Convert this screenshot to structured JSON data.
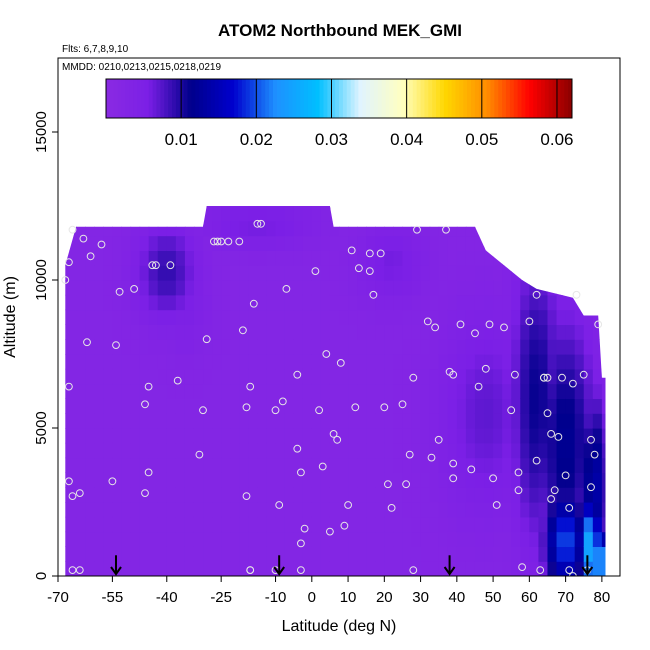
{
  "chart_data": {
    "type": "heatmap",
    "title": "ATOM2 Northbound MEK_GMI",
    "subtitle_flights": "Flts: 6,7,8,9,10",
    "subtitle_dates": "MMDD: 0210,0213,0215,0218,0219",
    "xlabel": "Latitude (deg N)",
    "ylabel": "Altitude (m)",
    "xlim": [
      -70,
      85
    ],
    "ylim": [
      0,
      17500
    ],
    "x_ticks": [
      "-70",
      "-55",
      "-40",
      "-25",
      "-10",
      "0",
      "10",
      "20",
      "30",
      "40",
      "50",
      "60",
      "70",
      "80"
    ],
    "x_tick_values": [
      -70,
      -55,
      -40,
      -25,
      -10,
      0,
      10,
      20,
      30,
      40,
      50,
      60,
      70,
      80
    ],
    "y_ticks": [
      "0",
      "5000",
      "10000",
      "15000"
    ],
    "y_tick_values": [
      0,
      5000,
      10000,
      15000
    ],
    "colorbar": {
      "range": [
        0,
        0.062
      ],
      "tick_labels": [
        "0.01",
        "0.02",
        "0.03",
        "0.04",
        "0.05",
        "0.06"
      ],
      "tick_values": [
        0.01,
        0.02,
        0.03,
        0.04,
        0.05,
        0.06
      ],
      "colors": [
        "#8a2be2",
        "#7b1fe6",
        "#00008b",
        "#0000cd",
        "#1e90ff",
        "#00bfff",
        "#e0f4ff",
        "#ffffc0",
        "#ffd700",
        "#ff8c00",
        "#ff0000",
        "#8b0000"
      ]
    },
    "background_value": 0.0025,
    "profile_tops": [
      {
        "lat": -68,
        "alt": 10500
      },
      {
        "lat": -65,
        "alt": 11800
      },
      {
        "lat": -30,
        "alt": 11800
      },
      {
        "lat": -29,
        "alt": 12500
      },
      {
        "lat": 5,
        "alt": 12500
      },
      {
        "lat": 6,
        "alt": 11800
      },
      {
        "lat": 45,
        "alt": 11800
      },
      {
        "lat": 48,
        "alt": 11000
      },
      {
        "lat": 53,
        "alt": 10500
      },
      {
        "lat": 58,
        "alt": 10000
      },
      {
        "lat": 62,
        "alt": 9700
      },
      {
        "lat": 72,
        "alt": 9400
      },
      {
        "lat": 75,
        "alt": 8800
      },
      {
        "lat": 79,
        "alt": 8800
      },
      {
        "lat": 80,
        "alt": 6700
      },
      {
        "lat": 81,
        "alt": 6700
      },
      {
        "lat": 81,
        "alt": 0
      },
      {
        "lat": -68,
        "alt": 0
      }
    ],
    "enhanced_regions": [
      {
        "lat": -40,
        "alt": 10300,
        "slat": 6,
        "salt": 1200,
        "value": 0.009
      },
      {
        "lat": -35,
        "alt": 9200,
        "slat": 5,
        "salt": 1200,
        "value": 0.005
      },
      {
        "lat": -15,
        "alt": 11900,
        "slat": 12,
        "salt": 600,
        "value": 0.006
      },
      {
        "lat": 22,
        "alt": 10600,
        "slat": 7,
        "salt": 1000,
        "value": 0.006
      },
      {
        "lat": 48,
        "alt": 5500,
        "slat": 9,
        "salt": 2500,
        "value": 0.007
      },
      {
        "lat": 62,
        "alt": 6000,
        "slat": 5,
        "salt": 3500,
        "value": 0.011
      },
      {
        "lat": 70,
        "alt": 4500,
        "slat": 6,
        "salt": 3000,
        "value": 0.012
      },
      {
        "lat": 78,
        "alt": 3000,
        "slat": 3,
        "salt": 2200,
        "value": 0.014
      },
      {
        "lat": 70,
        "alt": 1200,
        "slat": 4,
        "salt": 1200,
        "value": 0.02
      },
      {
        "lat": 77,
        "alt": 1000,
        "slat": 2,
        "salt": 1200,
        "value": 0.027
      },
      {
        "lat": 80,
        "alt": 500,
        "slat": 1.5,
        "salt": 700,
        "value": 0.032
      }
    ],
    "sample_points": [
      [
        -68,
        10000
      ],
      [
        -67,
        10600
      ],
      [
        -66,
        11700
      ],
      [
        -63,
        11400
      ],
      [
        -61,
        10800
      ],
      [
        -58,
        11200
      ],
      [
        -67,
        6400
      ],
      [
        -62,
        7900
      ],
      [
        -67,
        3200
      ],
      [
        -66,
        2700
      ],
      [
        -64,
        2800
      ],
      [
        -66,
        200
      ],
      [
        -64,
        200
      ],
      [
        -54,
        7800
      ],
      [
        -53,
        9600
      ],
      [
        -49,
        9700
      ],
      [
        -46,
        5800
      ],
      [
        -45,
        6400
      ],
      [
        -44,
        10500
      ],
      [
        -43,
        10500
      ],
      [
        -39,
        10500
      ],
      [
        -37,
        6600
      ],
      [
        -45,
        3500
      ],
      [
        -46,
        2800
      ],
      [
        -55,
        3200
      ],
      [
        -31,
        4100
      ],
      [
        -30,
        5600
      ],
      [
        -29,
        8000
      ],
      [
        -27,
        11300
      ],
      [
        -26,
        11300
      ],
      [
        -25,
        11300
      ],
      [
        -23,
        11300
      ],
      [
        -20,
        11300
      ],
      [
        -19,
        8300
      ],
      [
        -18,
        5700
      ],
      [
        -18,
        2700
      ],
      [
        -17,
        6400
      ],
      [
        -16,
        9200
      ],
      [
        -15,
        11900
      ],
      [
        -14,
        11900
      ],
      [
        -17,
        200
      ],
      [
        -17,
        200
      ],
      [
        -10,
        5600
      ],
      [
        -8,
        5900
      ],
      [
        -7,
        9700
      ],
      [
        -4,
        6800
      ],
      [
        -4,
        4300
      ],
      [
        -3,
        3500
      ],
      [
        -3,
        1100
      ],
      [
        -2,
        1600
      ],
      [
        -9,
        2400
      ],
      [
        -10,
        200
      ],
      [
        -3,
        200
      ],
      [
        1,
        10300
      ],
      [
        2,
        5600
      ],
      [
        3,
        3700
      ],
      [
        4,
        7500
      ],
      [
        5,
        1500
      ],
      [
        6,
        4800
      ],
      [
        7,
        4600
      ],
      [
        8,
        7200
      ],
      [
        9,
        1700
      ],
      [
        10,
        2400
      ],
      [
        11,
        11000
      ],
      [
        12,
        5700
      ],
      [
        13,
        10400
      ],
      [
        16,
        10900
      ],
      [
        16,
        10300
      ],
      [
        17,
        9500
      ],
      [
        19,
        10900
      ],
      [
        20,
        5700
      ],
      [
        21,
        3100
      ],
      [
        22,
        2300
      ],
      [
        25,
        5800
      ],
      [
        26,
        3100
      ],
      [
        27,
        4100
      ],
      [
        28,
        6700
      ],
      [
        28,
        200
      ],
      [
        29,
        11700
      ],
      [
        32,
        8600
      ],
      [
        33,
        4000
      ],
      [
        34,
        8400
      ],
      [
        35,
        4600
      ],
      [
        37,
        11700
      ],
      [
        38,
        6900
      ],
      [
        39,
        6800
      ],
      [
        39,
        3800
      ],
      [
        39,
        3300
      ],
      [
        41,
        8500
      ],
      [
        44,
        3600
      ],
      [
        45,
        8200
      ],
      [
        46,
        6400
      ],
      [
        48,
        7000
      ],
      [
        49,
        8500
      ],
      [
        50,
        3300
      ],
      [
        51,
        2400
      ],
      [
        53,
        8400
      ],
      [
        55,
        5600
      ],
      [
        56,
        6800
      ],
      [
        57,
        3500
      ],
      [
        57,
        2900
      ],
      [
        58,
        300
      ],
      [
        60,
        8600
      ],
      [
        62,
        3900
      ],
      [
        62,
        9500
      ],
      [
        64,
        6700
      ],
      [
        64,
        6700
      ],
      [
        65,
        6700
      ],
      [
        65,
        5500
      ],
      [
        66,
        4800
      ],
      [
        66,
        2600
      ],
      [
        67,
        2900
      ],
      [
        68,
        4700
      ],
      [
        69,
        6700
      ],
      [
        70,
        3400
      ],
      [
        71,
        2300
      ],
      [
        72,
        6500
      ],
      [
        73,
        9500
      ],
      [
        75,
        6800
      ],
      [
        77,
        3000
      ],
      [
        77,
        4600
      ],
      [
        78,
        4100
      ],
      [
        79,
        8500
      ],
      [
        63,
        200
      ],
      [
        71,
        200
      ],
      [
        72,
        0
      ],
      [
        76,
        200
      ]
    ],
    "flight_markers_lat": [
      -54,
      -9,
      38,
      76
    ],
    "flight_marker_top_alt": 700
  }
}
